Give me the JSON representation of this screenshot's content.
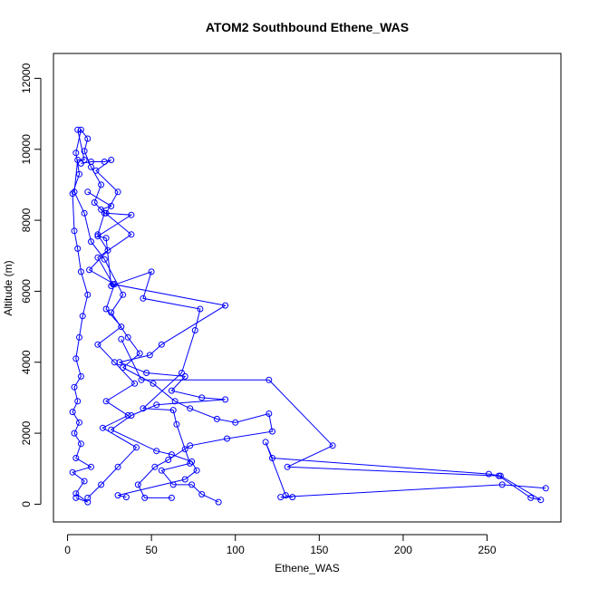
{
  "chart_data": {
    "type": "line",
    "title": "ATOM2 Southbound Ethene_WAS",
    "xlabel": "Ethene_WAS",
    "ylabel": "Altitude (m)",
    "xlim": [
      -8.4,
      294.0
    ],
    "ylim": [
      -500,
      12700
    ],
    "xticks": [
      0,
      50,
      100,
      150,
      200,
      250
    ],
    "yticks": [
      0,
      2000,
      4000,
      6000,
      8000,
      10000,
      12000
    ],
    "grid": false,
    "legend": "none",
    "series_color": "#0000FF",
    "series": [
      {
        "values": [
          [
            5,
            180
          ],
          [
            12,
            60
          ],
          [
            5,
            300
          ],
          [
            10,
            650
          ],
          [
            3,
            900
          ],
          [
            14,
            1050
          ],
          [
            5,
            1300
          ],
          [
            8,
            1700
          ],
          [
            4,
            2000
          ],
          [
            7,
            2300
          ],
          [
            3,
            2600
          ],
          [
            6,
            2900
          ],
          [
            4,
            3300
          ],
          [
            8,
            3600
          ],
          [
            5,
            4100
          ],
          [
            7,
            4700
          ],
          [
            9,
            5300
          ],
          [
            12,
            5900
          ],
          [
            8,
            6550
          ],
          [
            6,
            7200
          ],
          [
            4,
            7700
          ],
          [
            3,
            8750
          ],
          [
            7,
            9300
          ],
          [
            5,
            9900
          ],
          [
            8,
            10550
          ],
          [
            12,
            10300
          ],
          [
            10,
            9950
          ],
          [
            14,
            9500
          ],
          [
            20,
            9000
          ],
          [
            16,
            8500
          ],
          [
            22,
            8200
          ],
          [
            18,
            7600
          ],
          [
            24,
            7150
          ],
          [
            13,
            6600
          ],
          [
            28,
            6200
          ],
          [
            23,
            5500
          ],
          [
            32,
            5000
          ],
          [
            18,
            4500
          ],
          [
            28,
            4000
          ],
          [
            40,
            3400
          ],
          [
            23,
            2900
          ],
          [
            36,
            2500
          ],
          [
            21,
            2150
          ],
          [
            41,
            1600
          ],
          [
            30,
            1050
          ],
          [
            20,
            550
          ],
          [
            12,
            180
          ]
        ]
      },
      {
        "values": [
          [
            6,
            10550
          ],
          [
            10,
            9700
          ],
          [
            6,
            9700
          ],
          [
            4,
            8800
          ],
          [
            10,
            8200
          ],
          [
            14,
            7400
          ],
          [
            22,
            6900
          ],
          [
            33,
            5900
          ],
          [
            26,
            5400
          ],
          [
            36,
            4700
          ],
          [
            43,
            4250
          ],
          [
            33,
            3850
          ],
          [
            51,
            3400
          ],
          [
            64,
            2900
          ],
          [
            73,
            2700
          ],
          [
            89,
            2400
          ],
          [
            100,
            2300
          ],
          [
            120,
            2550
          ],
          [
            122,
            2050
          ],
          [
            95,
            1850
          ],
          [
            73,
            1650
          ],
          [
            60,
            1250
          ],
          [
            52,
            1050
          ],
          [
            42,
            550
          ],
          [
            46,
            180
          ],
          [
            62,
            180
          ]
        ]
      },
      {
        "values": [
          [
            8,
            9600
          ],
          [
            14,
            9650
          ],
          [
            22,
            9650
          ],
          [
            26,
            9700
          ],
          [
            17,
            9400
          ],
          [
            30,
            8800
          ],
          [
            23,
            8200
          ],
          [
            38,
            8150
          ],
          [
            18,
            7550
          ],
          [
            23,
            7500
          ],
          [
            26,
            6150
          ],
          [
            50,
            6550
          ],
          [
            45,
            5800
          ],
          [
            79,
            5500
          ],
          [
            76,
            4900
          ],
          [
            68,
            3700
          ],
          [
            45,
            2700
          ],
          [
            63,
            2650
          ],
          [
            65,
            2250
          ],
          [
            70,
            1550
          ],
          [
            73,
            1150
          ],
          [
            56,
            950
          ],
          [
            63,
            550
          ],
          [
            74,
            550
          ],
          [
            80,
            280
          ],
          [
            90,
            60
          ]
        ]
      },
      {
        "values": [
          [
            12,
            8800
          ],
          [
            26,
            8400
          ],
          [
            20,
            8300
          ],
          [
            38,
            7600
          ],
          [
            18,
            6950
          ],
          [
            27,
            6200
          ],
          [
            94,
            5600
          ],
          [
            56,
            4500
          ],
          [
            49,
            4200
          ],
          [
            31,
            4000
          ],
          [
            47,
            3700
          ],
          [
            70,
            3600
          ],
          [
            62,
            3200
          ],
          [
            80,
            3000
          ],
          [
            94,
            2950
          ],
          [
            53,
            2800
          ],
          [
            38,
            2500
          ],
          [
            26,
            2100
          ],
          [
            53,
            1500
          ],
          [
            62,
            1400
          ],
          [
            74,
            1200
          ],
          [
            77,
            950
          ],
          [
            70,
            700
          ],
          [
            30,
            250
          ],
          [
            35,
            200
          ]
        ]
      },
      {
        "values": [
          [
            32,
            4650
          ],
          [
            44,
            3500
          ],
          [
            120,
            3500
          ],
          [
            158,
            1650
          ],
          [
            131,
            1050
          ],
          [
            257,
            800
          ],
          [
            276,
            180
          ],
          [
            282,
            120
          ],
          [
            258,
            800
          ],
          [
            251,
            850
          ],
          [
            122,
            1300
          ],
          [
            118,
            1750
          ],
          [
            130,
            250
          ],
          [
            134,
            200
          ],
          [
            127,
            200
          ],
          [
            259,
            550
          ],
          [
            285,
            450
          ]
        ]
      }
    ]
  }
}
